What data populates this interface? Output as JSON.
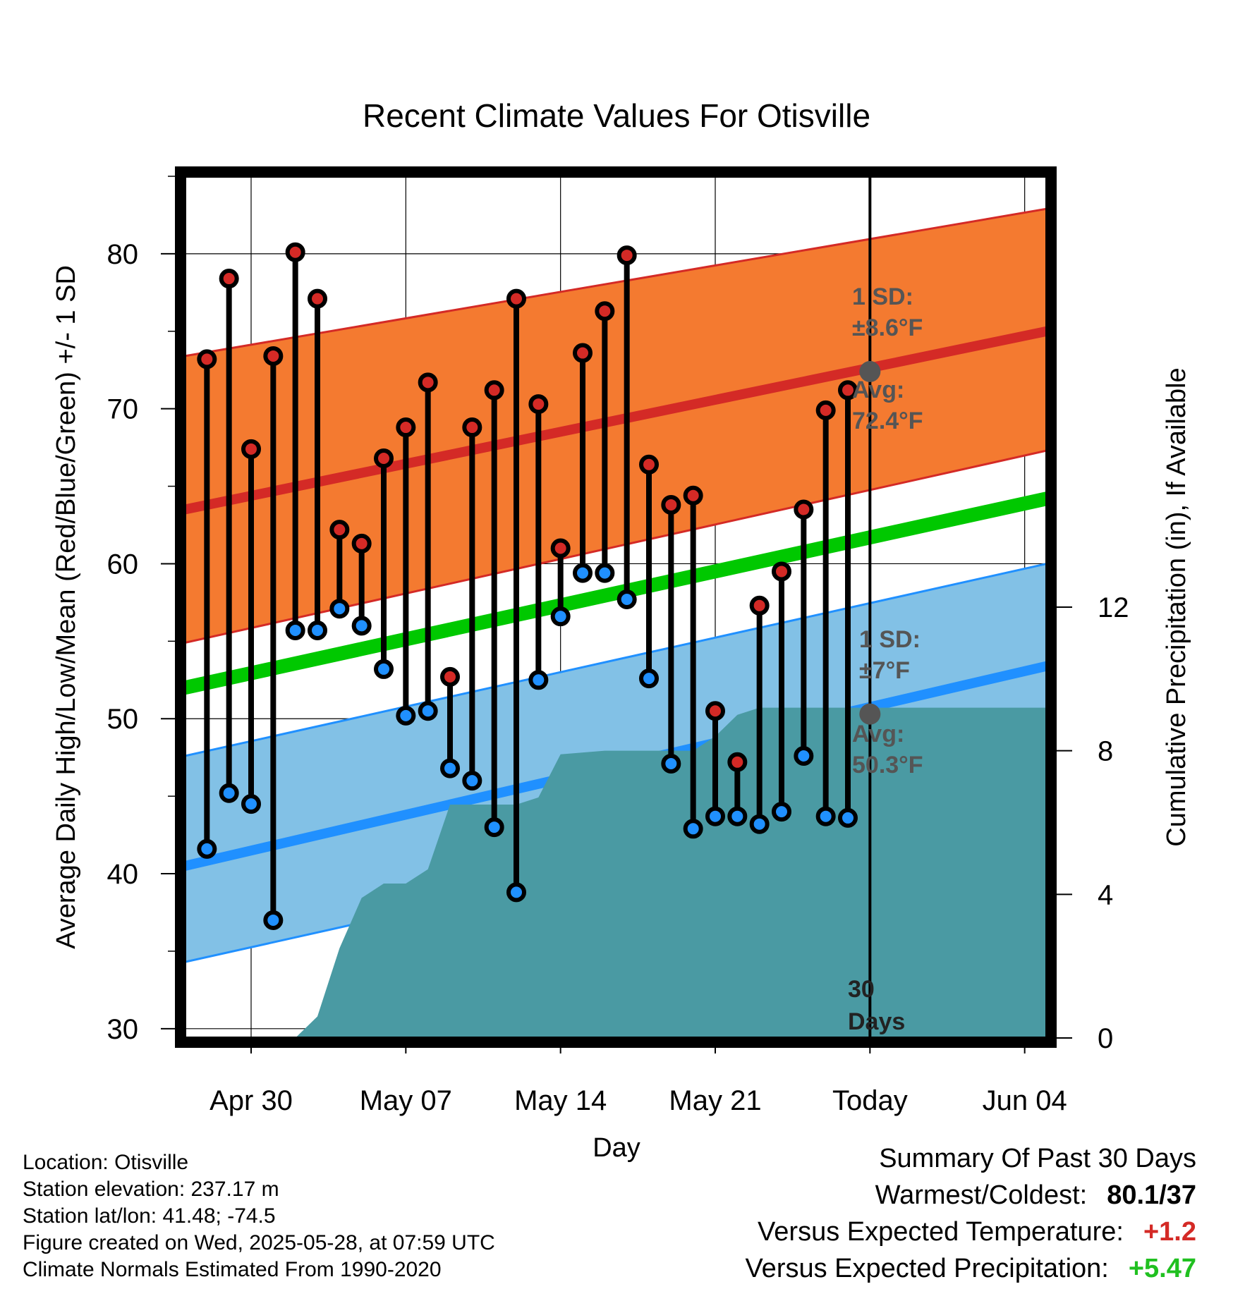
{
  "chart_data": {
    "type": "line",
    "title": "Recent Climate Values For Otisville",
    "xlabel": "Day",
    "ylabel_left": "Average Daily High/Low/Mean (Red/Blue/Green) +/- 1 SD",
    "ylabel_right": "Cumulative Precipitation (in), If Available",
    "x_tick_labels": [
      "Apr 30",
      "May 07",
      "May 14",
      "May 21",
      "Today",
      "Jun 04"
    ],
    "y_left_ticks": [
      "30",
      "40",
      "50",
      "60",
      "70",
      "80"
    ],
    "y_right_ticks": [
      "0",
      "4",
      "8",
      "12"
    ],
    "ylim_left": [
      29.4,
      85
    ],
    "ylim_right": [
      0,
      24
    ],
    "grid": true,
    "today_marker_label": [
      "30",
      "Days"
    ],
    "observed_days": [
      {
        "date": "2025-04-28",
        "high": 73.2,
        "low": 41.6
      },
      {
        "date": "2025-04-29",
        "high": 78.4,
        "low": 45.2
      },
      {
        "date": "2025-04-30",
        "high": 67.4,
        "low": 44.5
      },
      {
        "date": "2025-05-01",
        "high": 73.4,
        "low": 37.0
      },
      {
        "date": "2025-05-02",
        "high": 80.1,
        "low": 55.7
      },
      {
        "date": "2025-05-03",
        "high": 77.1,
        "low": 55.7
      },
      {
        "date": "2025-05-04",
        "high": 62.2,
        "low": 57.1
      },
      {
        "date": "2025-05-05",
        "high": 61.3,
        "low": 56.0
      },
      {
        "date": "2025-05-06",
        "high": 66.8,
        "low": 53.2
      },
      {
        "date": "2025-05-07",
        "high": 68.8,
        "low": 50.2
      },
      {
        "date": "2025-05-08",
        "high": 71.7,
        "low": 50.5
      },
      {
        "date": "2025-05-09",
        "high": 52.7,
        "low": 46.8
      },
      {
        "date": "2025-05-10",
        "high": 68.8,
        "low": 46.0
      },
      {
        "date": "2025-05-11",
        "high": 71.2,
        "low": 43.0
      },
      {
        "date": "2025-05-12",
        "high": 77.1,
        "low": 38.8
      },
      {
        "date": "2025-05-13",
        "high": 70.3,
        "low": 52.5
      },
      {
        "date": "2025-05-14",
        "high": 61.0,
        "low": 56.6
      },
      {
        "date": "2025-05-15",
        "high": 73.6,
        "low": 59.4
      },
      {
        "date": "2025-05-16",
        "high": 76.3,
        "low": 59.4
      },
      {
        "date": "2025-05-17",
        "high": 79.9,
        "low": 57.7
      },
      {
        "date": "2025-05-18",
        "high": 66.4,
        "low": 52.6
      },
      {
        "date": "2025-05-19",
        "high": 63.8,
        "low": 47.1
      },
      {
        "date": "2025-05-20",
        "high": 64.4,
        "low": 42.9
      },
      {
        "date": "2025-05-21",
        "high": 50.5,
        "low": 43.7
      },
      {
        "date": "2025-05-22",
        "high": 47.2,
        "low": 43.7
      },
      {
        "date": "2025-05-23",
        "high": 57.3,
        "low": 43.2
      },
      {
        "date": "2025-05-24",
        "high": 59.5,
        "low": 44.0
      },
      {
        "date": "2025-05-25",
        "high": 63.5,
        "low": 47.6
      },
      {
        "date": "2025-05-26",
        "high": 69.9,
        "low": 43.7
      },
      {
        "date": "2025-05-27",
        "high": 71.2,
        "low": 43.6
      }
    ],
    "normals": {
      "start_date": "2025-04-27",
      "end_date": "2025-06-05",
      "high_mean": [
        63.5,
        75.0
      ],
      "high_band_upper": [
        73.4,
        82.9
      ],
      "high_band_lower": [
        54.9,
        67.3
      ],
      "low_mean": [
        40.5,
        53.4
      ],
      "low_band_upper": [
        47.6,
        60.0
      ],
      "low_band_lower": [
        34.3,
        46.7
      ],
      "mean": [
        52.0,
        64.2
      ]
    },
    "cumulative_precip": [
      {
        "date": "2025-04-28",
        "value": 0.0
      },
      {
        "date": "2025-05-02",
        "value": 0.0
      },
      {
        "date": "2025-05-03",
        "value": 0.6
      },
      {
        "date": "2025-05-04",
        "value": 2.5
      },
      {
        "date": "2025-05-05",
        "value": 3.9
      },
      {
        "date": "2025-05-06",
        "value": 4.3
      },
      {
        "date": "2025-05-07",
        "value": 4.3
      },
      {
        "date": "2025-05-08",
        "value": 4.7
      },
      {
        "date": "2025-05-09",
        "value": 6.5
      },
      {
        "date": "2025-05-12",
        "value": 6.5
      },
      {
        "date": "2025-05-13",
        "value": 6.7
      },
      {
        "date": "2025-05-14",
        "value": 7.9
      },
      {
        "date": "2025-05-16",
        "value": 8.0
      },
      {
        "date": "2025-05-18",
        "value": 8.0
      },
      {
        "date": "2025-05-19",
        "value": 8.0
      },
      {
        "date": "2025-05-20",
        "value": 8.0
      },
      {
        "date": "2025-05-21",
        "value": 8.4
      },
      {
        "date": "2025-05-22",
        "value": 9.0
      },
      {
        "date": "2025-05-23",
        "value": 9.2
      },
      {
        "date": "2025-05-25",
        "value": 9.2
      },
      {
        "date": "2025-06-05",
        "value": 9.2
      }
    ],
    "today_high_avg": {
      "date": "2025-05-28",
      "value": 72.4,
      "label1": "1 SD:",
      "label2": "±8.6°F",
      "label3": "Avg:",
      "label4": "72.4°F"
    },
    "today_low_avg": {
      "date": "2025-05-28",
      "value": 50.3,
      "label1": "1 SD:",
      "label2": "±7°F",
      "label3": "Avg:",
      "label4": "50.3°F"
    },
    "colors": {
      "high_band": "#f47a30",
      "high_mean": "#d42a26",
      "low_band": "#82c1e6",
      "low_mean": "#2090ff",
      "mean": "#00c800",
      "precip": "#4a9aa3",
      "high_dot": "#d42a26",
      "low_dot": "#2090ff",
      "avg_dot": "#555555"
    }
  },
  "info": {
    "location": "Location: Otisville",
    "elevation": "Station elevation: 237.17 m",
    "latlon": "Station lat/lon: 41.48; -74.5",
    "created": "Figure created on Wed, 2025-05-28, at 07:59 UTC",
    "normals": "Climate Normals Estimated From 1990-2020"
  },
  "summary": {
    "title": "Summary Of Past 30 Days",
    "warm_cold_label": "Warmest/Coldest:",
    "warm_cold_value": "80.1/37",
    "temp_label": "Versus Expected Temperature:",
    "temp_value": "+1.2",
    "temp_color": "#d42a26",
    "precip_label": "Versus Expected Precipitation:",
    "precip_value": "+5.47",
    "precip_color": "#20c020"
  }
}
